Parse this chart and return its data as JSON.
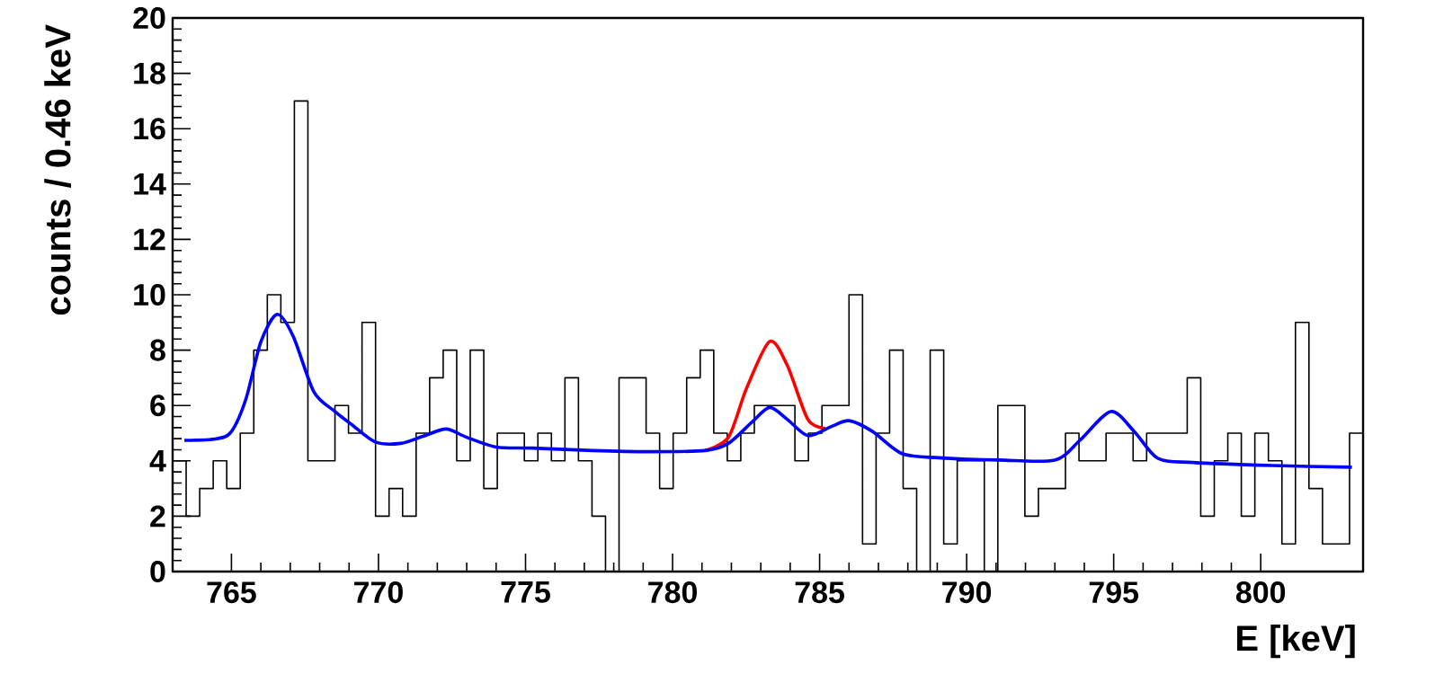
{
  "chart_data": {
    "type": "histogram",
    "xlabel": "E [keV]",
    "ylabel": "counts / 0.46 keV",
    "bins": [
      763,
      763.46,
      763.92,
      764.38,
      764.84,
      765.3,
      765.76,
      766.22,
      766.68,
      767.14,
      767.6,
      768.06,
      768.52,
      768.98,
      769.44,
      769.9,
      770.36,
      770.82,
      771.28,
      771.74,
      772.2,
      772.66,
      773.12,
      773.58,
      774.04,
      774.5,
      774.96,
      775.42,
      775.88,
      776.34,
      776.8,
      777.26,
      777.72,
      778.18,
      778.64,
      779.1,
      779.56,
      780.02,
      780.48,
      780.94,
      781.4,
      781.86,
      782.32,
      782.78,
      783.24,
      783.7,
      784.16,
      784.62,
      785.08,
      785.54,
      786,
      786.46,
      786.92,
      787.38,
      787.84,
      788.3,
      788.76,
      789.22,
      789.68,
      790.14,
      790.6,
      791.06,
      791.52,
      791.98,
      792.44,
      792.9,
      793.36,
      793.82,
      794.28,
      794.74,
      795.2,
      795.66,
      796.12,
      796.58,
      797.04,
      797.5,
      797.96,
      798.42,
      798.88,
      799.34,
      799.8,
      800.26,
      800.72,
      801.18,
      801.64,
      802.1,
      802.56,
      803.02,
      803.48
    ],
    "series": [
      {
        "color": "#000000",
        "values": [
          4,
          2,
          3,
          4,
          3,
          5,
          8,
          10,
          9,
          17,
          4,
          4,
          6,
          5,
          9,
          2,
          3,
          2,
          5,
          7,
          8,
          4,
          8,
          3,
          5,
          5,
          4,
          5,
          4,
          7,
          4,
          2,
          0,
          7,
          7,
          5,
          3,
          5,
          7,
          8,
          5,
          4,
          5,
          6,
          6,
          6,
          4,
          5,
          6,
          6,
          10,
          1,
          5,
          8,
          3,
          0,
          8,
          1,
          4,
          4,
          0,
          6,
          6,
          2,
          3,
          3,
          5,
          4,
          4,
          5,
          5,
          4,
          5,
          5,
          5,
          7,
          2,
          4,
          5,
          2,
          5,
          4,
          1,
          9,
          3,
          1,
          1,
          5
        ]
      },
      {
        "type": "line",
        "color": "#ff0000",
        "x": [
          781.1,
          781.9,
          782.5,
          783.3,
          783.9,
          784.6,
          785.2
        ],
        "values": [
          4.37,
          4.85,
          6.58,
          8.31,
          7.45,
          5.5,
          5.17
        ]
      },
      {
        "type": "line",
        "color": "#0000ff",
        "x": [
          763.4,
          764.5,
          765.0,
          765.5,
          766.0,
          766.55,
          767.1,
          767.8,
          768.5,
          769.1,
          769.9,
          770.75,
          771.55,
          772.3,
          773.0,
          774.0,
          775.25,
          777.3,
          779.2,
          781.1,
          781.9,
          782.7,
          783.3,
          783.9,
          784.6,
          785.4,
          786.0,
          786.8,
          787.8,
          789.05,
          791.1,
          793.0,
          793.85,
          794.9,
          795.7,
          796.5,
          797.7,
          800.4,
          803.1
        ],
        "values": [
          4.74,
          4.8,
          5.06,
          6.26,
          8.3,
          9.29,
          8.5,
          6.5,
          5.8,
          5.3,
          4.68,
          4.63,
          4.9,
          5.15,
          4.85,
          4.5,
          4.46,
          4.37,
          4.33,
          4.37,
          4.63,
          5.4,
          5.93,
          5.5,
          4.91,
          5.24,
          5.45,
          5.06,
          4.26,
          4.11,
          4.03,
          4.03,
          4.74,
          5.78,
          5.06,
          4.09,
          3.94,
          3.83,
          3.77
        ]
      }
    ],
    "xlim": [
      763,
      803.48
    ],
    "ylim": [
      0,
      20
    ],
    "xticks": [
      765,
      770,
      775,
      780,
      785,
      790,
      795,
      800
    ],
    "yticks": [
      0,
      2,
      4,
      6,
      8,
      10,
      12,
      14,
      16,
      18,
      20
    ],
    "line_style": "solid"
  }
}
